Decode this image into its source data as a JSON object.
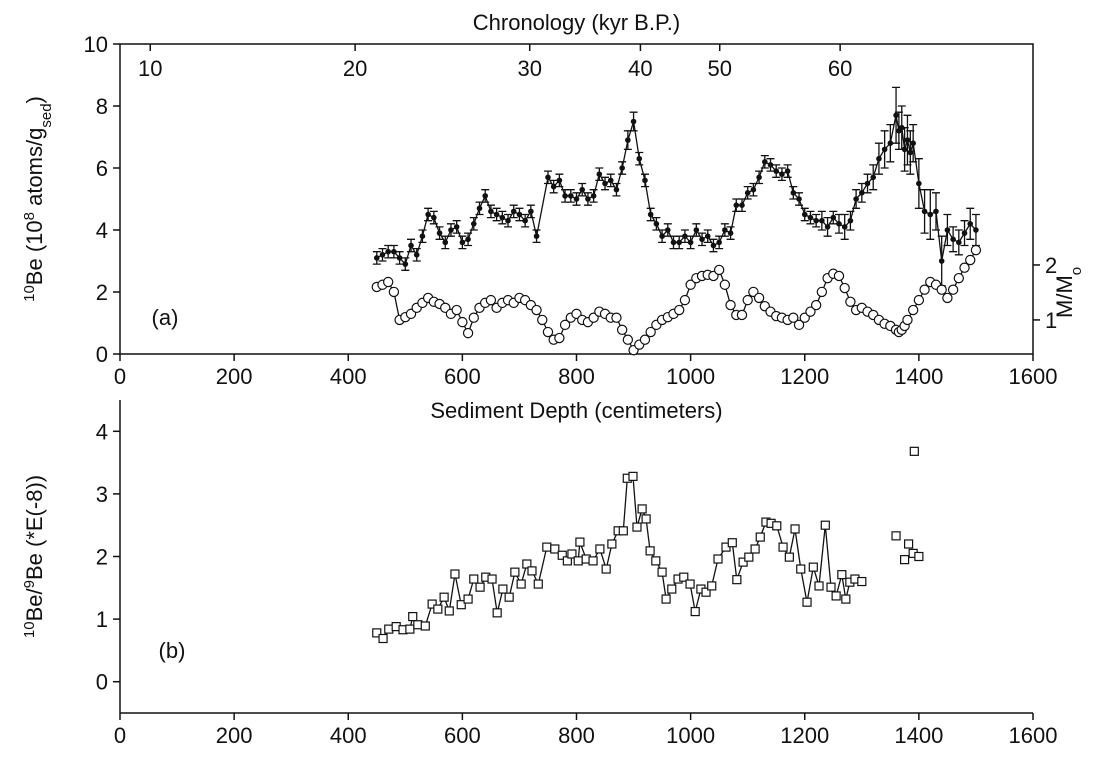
{
  "chart_data": [
    {
      "type": "line",
      "panel_label": "(a)",
      "x2label": "Chronology (kyr B.P.)",
      "xlabel": "Sediment Depth (centimeters)",
      "ylabel": [
        "10",
        "Be (10",
        "8",
        " atoms/g",
        "sed",
        ")"
      ],
      "ylabel_styles": [
        "sup",
        "normal",
        "sup",
        "normal",
        "sub",
        "normal"
      ],
      "y2label": [
        "M/M",
        "o"
      ],
      "y2label_styles": [
        "normal",
        "sub"
      ],
      "box": true,
      "xlim": [
        0,
        1600
      ],
      "xticks": [
        0,
        200,
        400,
        600,
        800,
        1000,
        1200,
        1400,
        1600
      ],
      "x2ticks": [
        {
          "value": 53,
          "label": "10"
        },
        {
          "value": 412,
          "label": "20"
        },
        {
          "value": 718,
          "label": "30"
        },
        {
          "value": 912,
          "label": "40"
        },
        {
          "value": 1051,
          "label": "50"
        },
        {
          "value": 1262,
          "label": "60"
        }
      ],
      "ylim": [
        0,
        10
      ],
      "yticks": [
        0,
        2,
        4,
        6,
        8,
        10
      ],
      "y2lim": [
        0.38,
        6.02
      ],
      "y2ticks": [
        1,
        2
      ],
      "series": [
        {
          "color": "#111111",
          "marker": "filled-circle",
          "x": [
            450,
            460,
            470,
            480,
            490,
            500,
            510,
            520,
            530,
            540,
            550,
            560,
            570,
            580,
            590,
            600,
            610,
            620,
            630,
            640,
            650,
            660,
            670,
            680,
            690,
            700,
            710,
            720,
            730,
            750,
            760,
            770,
            780,
            790,
            800,
            810,
            820,
            830,
            840,
            850,
            860,
            870,
            880,
            890,
            900,
            910,
            920,
            930,
            940,
            950,
            960,
            970,
            980,
            990,
            1000,
            1010,
            1020,
            1030,
            1040,
            1050,
            1060,
            1070,
            1080,
            1090,
            1100,
            1110,
            1120,
            1130,
            1140,
            1150,
            1160,
            1170,
            1180,
            1190,
            1200,
            1210,
            1220,
            1230,
            1240,
            1250,
            1260,
            1270,
            1280,
            1290,
            1300,
            1310,
            1320,
            1330,
            1340,
            1350,
            1360,
            1365,
            1370,
            1375,
            1380,
            1385,
            1390,
            1400,
            1410,
            1420,
            1430,
            1440,
            1450,
            1460,
            1470,
            1480,
            1490,
            1500
          ],
          "values": [
            3.1,
            3.2,
            3.3,
            3.3,
            3.1,
            2.9,
            3.5,
            3.2,
            3.8,
            4.5,
            4.4,
            3.9,
            3.6,
            4.0,
            4.1,
            3.6,
            3.7,
            4.2,
            4.7,
            5.1,
            4.6,
            4.5,
            4.4,
            4.3,
            4.6,
            4.5,
            4.3,
            4.6,
            3.8,
            5.7,
            5.4,
            5.6,
            5.1,
            5.1,
            5.0,
            5.3,
            5.0,
            5.1,
            5.8,
            5.5,
            5.6,
            5.3,
            6.0,
            6.9,
            7.5,
            6.3,
            5.6,
            4.5,
            4.2,
            3.8,
            4.0,
            3.6,
            3.6,
            3.8,
            3.6,
            4.0,
            3.7,
            3.8,
            3.5,
            3.6,
            4.0,
            3.9,
            4.8,
            4.8,
            5.2,
            5.3,
            5.7,
            6.2,
            6.1,
            5.9,
            5.8,
            5.9,
            5.2,
            5.0,
            4.5,
            4.4,
            4.3,
            4.3,
            4.1,
            4.4,
            4.2,
            4.1,
            4.3,
            5.0,
            5.2,
            5.5,
            5.7,
            6.3,
            6.6,
            6.8,
            7.7,
            7.2,
            7.3,
            6.6,
            6.9,
            6.5,
            6.8,
            5.5,
            4.6,
            4.5,
            4.6,
            3.0,
            4.0,
            3.7,
            3.6,
            3.9,
            4.2,
            4.0
          ],
          "errors": [
            0.2,
            0.2,
            0.2,
            0.2,
            0.2,
            0.2,
            0.2,
            0.2,
            0.2,
            0.2,
            0.2,
            0.2,
            0.2,
            0.2,
            0.2,
            0.2,
            0.2,
            0.2,
            0.2,
            0.2,
            0.2,
            0.2,
            0.2,
            0.2,
            0.2,
            0.2,
            0.2,
            0.2,
            0.2,
            0.2,
            0.2,
            0.2,
            0.2,
            0.2,
            0.2,
            0.2,
            0.2,
            0.2,
            0.2,
            0.2,
            0.2,
            0.2,
            0.2,
            0.3,
            0.3,
            0.2,
            0.2,
            0.2,
            0.2,
            0.2,
            0.2,
            0.2,
            0.2,
            0.2,
            0.2,
            0.2,
            0.2,
            0.2,
            0.2,
            0.2,
            0.2,
            0.2,
            0.2,
            0.2,
            0.2,
            0.2,
            0.2,
            0.2,
            0.2,
            0.2,
            0.2,
            0.2,
            0.2,
            0.2,
            0.2,
            0.2,
            0.2,
            0.3,
            0.3,
            0.2,
            0.3,
            0.4,
            0.3,
            0.3,
            0.3,
            0.3,
            0.4,
            0.5,
            0.6,
            0.6,
            0.9,
            0.6,
            0.7,
            0.7,
            0.8,
            0.7,
            0.6,
            0.8,
            0.7,
            0.8,
            0.6,
            0.8,
            0.5,
            0.4,
            0.4,
            0.4,
            0.5,
            0.5
          ]
        },
        {
          "color": "#111111",
          "marker": "open-circle",
          "axis": "y2",
          "x": [
            450,
            460,
            470,
            480,
            490,
            500,
            510,
            520,
            530,
            540,
            550,
            560,
            570,
            580,
            590,
            600,
            610,
            620,
            630,
            640,
            650,
            660,
            670,
            680,
            690,
            700,
            710,
            720,
            730,
            740,
            750,
            760,
            770,
            780,
            790,
            800,
            810,
            820,
            830,
            840,
            850,
            860,
            870,
            880,
            890,
            900,
            910,
            920,
            930,
            940,
            950,
            960,
            970,
            980,
            990,
            1000,
            1010,
            1020,
            1030,
            1040,
            1050,
            1060,
            1070,
            1080,
            1090,
            1100,
            1110,
            1120,
            1130,
            1140,
            1150,
            1160,
            1170,
            1180,
            1190,
            1200,
            1210,
            1220,
            1230,
            1240,
            1250,
            1260,
            1270,
            1280,
            1290,
            1300,
            1310,
            1320,
            1330,
            1340,
            1350,
            1360,
            1365,
            1370,
            1375,
            1380,
            1390,
            1400,
            1410,
            1420,
            1430,
            1440,
            1450,
            1460,
            1470,
            1480,
            1490,
            1500
          ],
          "values": [
            1.6,
            1.64,
            1.69,
            1.51,
            1.0,
            1.05,
            1.11,
            1.22,
            1.31,
            1.4,
            1.33,
            1.29,
            1.22,
            1.11,
            1.18,
            0.96,
            0.76,
            1.04,
            1.22,
            1.31,
            1.36,
            1.22,
            1.31,
            1.36,
            1.31,
            1.4,
            1.36,
            1.27,
            1.18,
            1.0,
            0.78,
            0.64,
            0.67,
            0.91,
            1.04,
            1.11,
            1.0,
            0.96,
            1.04,
            1.15,
            1.11,
            1.04,
            1.04,
            0.82,
            0.64,
            0.45,
            0.55,
            0.64,
            0.78,
            0.91,
            1.0,
            1.05,
            1.11,
            1.18,
            1.36,
            1.64,
            1.76,
            1.8,
            1.82,
            1.8,
            1.91,
            1.64,
            1.27,
            1.09,
            1.09,
            1.36,
            1.51,
            1.4,
            1.25,
            1.15,
            1.07,
            1.04,
            1.0,
            1.04,
            0.91,
            1.04,
            1.15,
            1.27,
            1.51,
            1.76,
            1.84,
            1.8,
            1.58,
            1.33,
            1.18,
            1.22,
            1.15,
            1.09,
            1.0,
            0.93,
            0.89,
            0.82,
            0.78,
            0.82,
            0.89,
            1.0,
            1.18,
            1.36,
            1.55,
            1.69,
            1.64,
            1.55,
            1.4,
            1.55,
            1.76,
            1.95,
            2.09,
            2.27
          ]
        }
      ]
    },
    {
      "type": "line",
      "panel_label": "(b)",
      "ylabel": [
        "10",
        "Be/",
        "9",
        "Be (*E(-8))"
      ],
      "ylabel_styles": [
        "sup",
        "normal",
        "sup",
        "normal"
      ],
      "box": false,
      "xlim": [
        0,
        1600
      ],
      "xticks": [
        0,
        200,
        400,
        600,
        800,
        1000,
        1200,
        1400,
        1600
      ],
      "ylim": [
        -0.5,
        4.5
      ],
      "yticks": [
        0,
        1,
        2,
        3,
        4
      ],
      "series": [
        {
          "color": "#111111",
          "marker": "open-square",
          "x": [
            450,
            461,
            471,
            484,
            496,
            508,
            513,
            522,
            535,
            547,
            557,
            568,
            577,
            587,
            598,
            610,
            620,
            631,
            641,
            652,
            661,
            671,
            682,
            692,
            703,
            713,
            722,
            733,
            748,
            762,
            775,
            784,
            792,
            803,
            806,
            817,
            829,
            841,
            852,
            862,
            873,
            882,
            889,
            899,
            906,
            915,
            922,
            929,
            939,
            950,
            957,
            967,
            978,
            988,
            999,
            1008,
            1018,
            1027,
            1037,
            1048,
            1062,
            1073,
            1081,
            1092,
            1102,
            1113,
            1122,
            1132,
            1141,
            1151,
            1162,
            1173,
            1183,
            1193,
            1204,
            1215,
            1225,
            1236,
            1246,
            1255,
            1265,
            1272,
            1279,
            1288
          ],
          "values": [
            0.78,
            0.69,
            0.84,
            0.88,
            0.83,
            0.84,
            1.04,
            0.91,
            0.89,
            1.24,
            1.16,
            1.35,
            1.13,
            1.72,
            1.23,
            1.32,
            1.64,
            1.51,
            1.67,
            1.64,
            1.1,
            1.48,
            1.35,
            1.75,
            1.56,
            1.88,
            1.77,
            1.56,
            2.15,
            2.12,
            2.02,
            1.93,
            2.04,
            1.93,
            2.23,
            1.96,
            1.93,
            2.12,
            1.8,
            2.2,
            2.41,
            2.41,
            3.25,
            3.28,
            2.47,
            2.76,
            2.6,
            2.09,
            1.93,
            1.75,
            1.32,
            1.48,
            1.64,
            1.67,
            1.56,
            1.12,
            1.48,
            1.43,
            1.53,
            1.96,
            2.15,
            2.22,
            1.63,
            1.91,
            1.99,
            2.12,
            2.31,
            2.55,
            2.53,
            2.49,
            2.15,
            1.99,
            2.44,
            1.8,
            1.27,
            1.83,
            1.53,
            2.5,
            1.51,
            1.37,
            1.71,
            1.32,
            1.59,
            1.64
          ]
        },
        {
          "color": "#111111",
          "marker": "open-square",
          "line": false,
          "x": [
            1300,
            1360,
            1375,
            1382,
            1390,
            1392,
            1400
          ],
          "values": [
            1.6,
            2.33,
            1.95,
            2.2,
            2.05,
            3.68,
            2.0
          ]
        }
      ]
    }
  ]
}
